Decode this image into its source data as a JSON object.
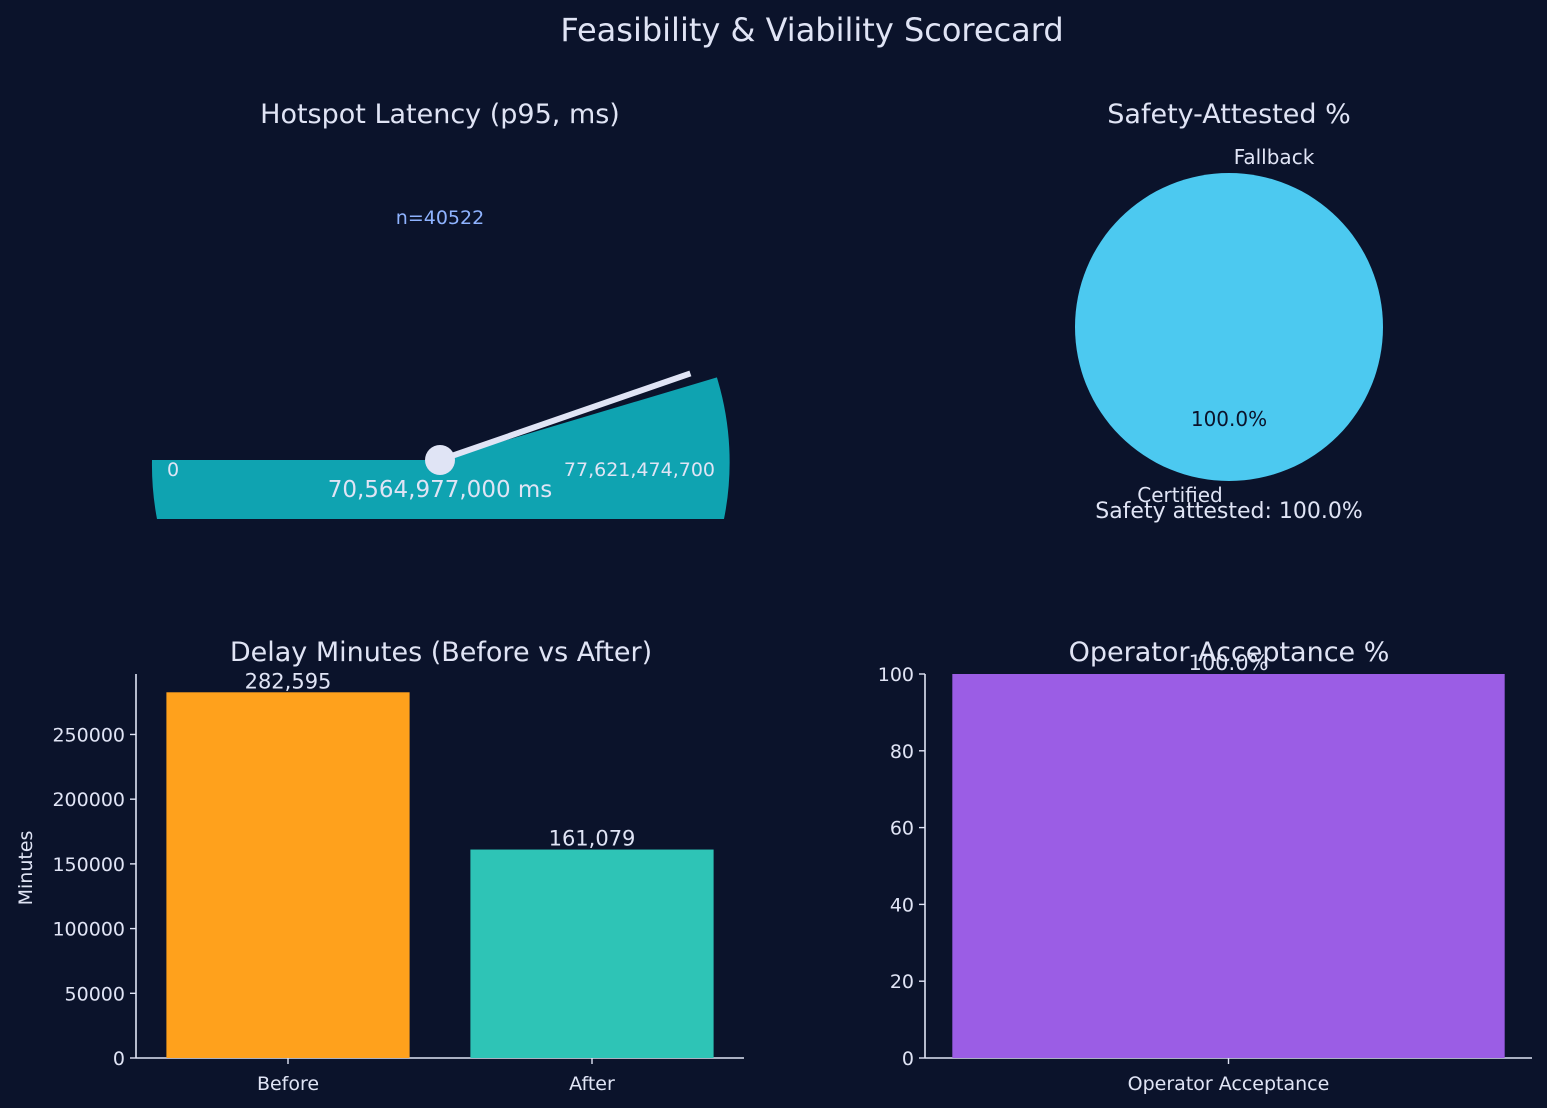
{
  "title": "Feasibility & Viability Scorecard",
  "colors": {
    "background": "#0b132b",
    "text": "#e0e4f5",
    "gauge": "#0fa3b1",
    "needle": "#e0e4f5",
    "annotation": "#8fb3ff",
    "pie": "#4cc9f0",
    "before_bar": "#ffa11c",
    "after_bar": "#2ec4b6",
    "acceptance_bar": "#9b5de5"
  },
  "chart_data": [
    {
      "type": "gauge",
      "title": "Hotspot Latency (p95, ms)",
      "annotation": "n=40522",
      "value": 70564977000,
      "min": 0,
      "max": 77621474700,
      "value_label": "70,564,977,000 ms",
      "min_label": "0",
      "max_label": "77,621,474,700"
    },
    {
      "type": "pie",
      "title": "Safety-Attested %",
      "slices": [
        {
          "label": "Certified",
          "value": 100.0,
          "pct_label": "100.0%"
        },
        {
          "label": "Fallback",
          "value": 0.0
        }
      ],
      "footer": "Safety attested: 100.0%"
    },
    {
      "type": "bar",
      "title": "Delay Minutes (Before vs After)",
      "ylabel": "Minutes",
      "categories": [
        "Before",
        "After"
      ],
      "values": [
        282595,
        161079
      ],
      "value_labels": [
        "282,595",
        "161,079"
      ],
      "ylim": [
        0,
        296725
      ],
      "yticks": [
        0,
        50000,
        100000,
        150000,
        200000,
        250000
      ],
      "ytick_labels": [
        "0",
        "50000",
        "100000",
        "150000",
        "200000",
        "250000"
      ]
    },
    {
      "type": "bar",
      "title": "Operator Acceptance %",
      "categories": [
        "Operator Acceptance"
      ],
      "values": [
        100.0
      ],
      "value_labels": [
        "100.0%"
      ],
      "ylim": [
        0,
        100
      ],
      "yticks": [
        0,
        20,
        40,
        60,
        80,
        100
      ],
      "ytick_labels": [
        "0",
        "20",
        "40",
        "60",
        "80",
        "100"
      ]
    }
  ]
}
